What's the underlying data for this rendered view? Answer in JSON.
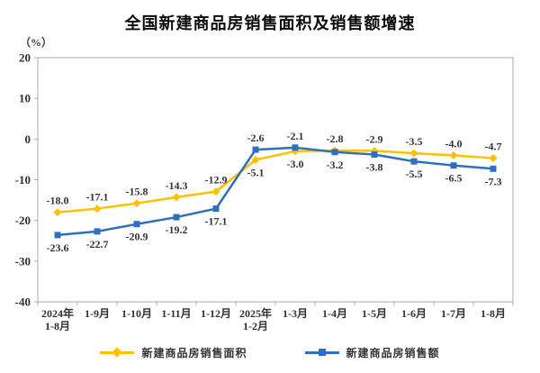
{
  "header": {
    "title": "全国新建商品房销售面积及销售额增速",
    "unit_label": "（%）"
  },
  "colors": {
    "sales_area_line": "#FFC000",
    "sales_amount_line": "#2E6FBE",
    "axis": "#ABABAB",
    "data_label": "#333333",
    "title_text": "#0a0a0a"
  },
  "chart_data": {
    "type": "line",
    "title": "全国新建商品房销售面积及销售额增速",
    "ylabel": "（%）",
    "xlabel": "",
    "ylim": [
      -40,
      20
    ],
    "yticks": [
      20,
      10,
      0,
      -10,
      -20,
      -30,
      -40
    ],
    "grid": false,
    "legend_position": "bottom",
    "categories": [
      [
        "2024年",
        "1-8月"
      ],
      [
        "1-9月"
      ],
      [
        "1-10月"
      ],
      [
        "1-11月"
      ],
      [
        "1-12月"
      ],
      [
        "2025年",
        "1-2月"
      ],
      [
        "1-3月"
      ],
      [
        "1-4月"
      ],
      [
        "1-5月"
      ],
      [
        "1-6月"
      ],
      [
        "1-7月"
      ],
      [
        "1-8月"
      ]
    ],
    "series": [
      {
        "name": "新建商品房销售面积",
        "color": "#FFC000",
        "marker": "diamond",
        "values": [
          -18.0,
          -17.1,
          -15.8,
          -14.3,
          -12.9,
          -5.1,
          -3.0,
          -2.8,
          -2.9,
          -3.5,
          -4.0,
          -4.7
        ],
        "labels": [
          "-18.0",
          "-17.1",
          "-15.8",
          "-14.3",
          "-12.9",
          "-5.1",
          "-3.0",
          "-2.8",
          "-2.9",
          "-3.5",
          "-4.0",
          "-4.7"
        ],
        "label_side": [
          "above",
          "above",
          "above",
          "above",
          "above",
          "below",
          "below",
          "above",
          "above",
          "above",
          "above",
          "above"
        ]
      },
      {
        "name": "新建商品房销售额",
        "color": "#2E6FBE",
        "marker": "square",
        "values": [
          -23.6,
          -22.7,
          -20.9,
          -19.2,
          -17.1,
          -2.6,
          -2.1,
          -3.2,
          -3.8,
          -5.5,
          -6.5,
          -7.3
        ],
        "labels": [
          "-23.6",
          "-22.7",
          "-20.9",
          "-19.2",
          "-17.1",
          "-2.6",
          "-2.1",
          "-3.2",
          "-3.8",
          "-5.5",
          "-6.5",
          "-7.3"
        ],
        "label_side": [
          "below",
          "below",
          "below",
          "below",
          "below",
          "above",
          "above",
          "below",
          "below",
          "below",
          "below",
          "below"
        ]
      }
    ]
  }
}
